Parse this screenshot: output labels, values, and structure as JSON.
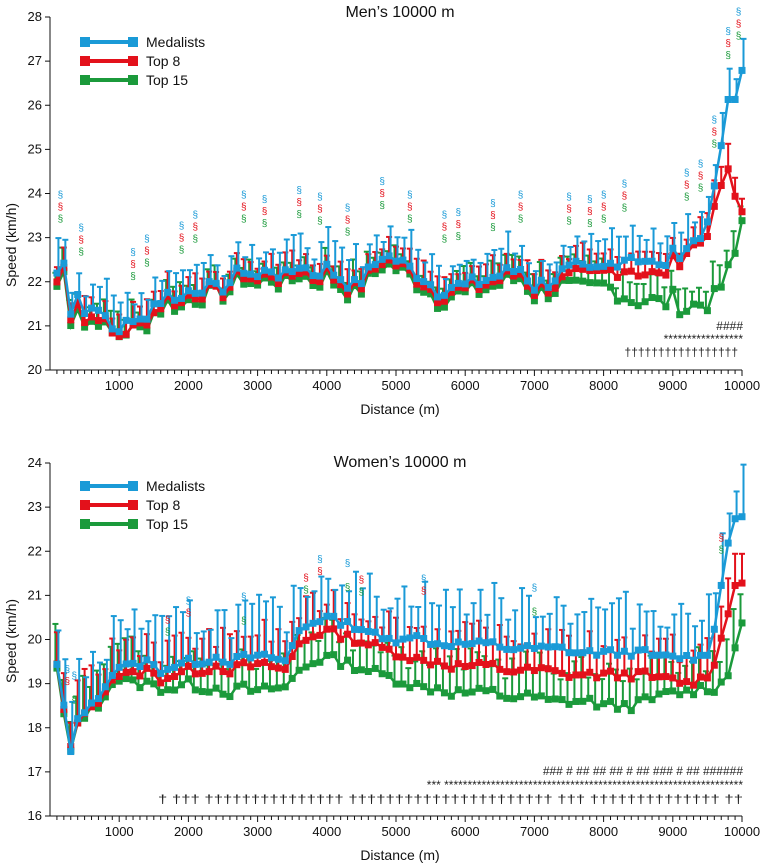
{
  "colors": {
    "medalists": "#1a9ad7",
    "top8": "#e3111b",
    "top15": "#1b9a3b"
  },
  "chart_data": [
    {
      "type": "line",
      "title": "Men’s 10000 m",
      "xlabel": "Distance (m)",
      "ylabel": "Speed (km/h)",
      "xlim": [
        0,
        10000
      ],
      "ylim": [
        20,
        28
      ],
      "x_ticks": [
        "1000",
        "2000",
        "3000",
        "4000",
        "5000",
        "6000",
        "7000",
        "8000",
        "9000",
        "10000"
      ],
      "y_ticks": [
        "20",
        "21",
        "22",
        "23",
        "24",
        "25",
        "26",
        "27",
        "28"
      ],
      "legend": [
        "Medalists",
        "Top 8",
        "Top 15"
      ],
      "legend_position": "top-left",
      "error_bars": "upper standard deviation shown as capped whiskers",
      "anchors": {
        "x": [
          100,
          200,
          300,
          400,
          500,
          600,
          700,
          800,
          900,
          1000,
          1100,
          1200,
          1300,
          1400,
          1500,
          1600,
          1700,
          1800,
          1900,
          2000,
          2200,
          2400,
          2600,
          2800,
          3000,
          3200,
          3400,
          3600,
          3800,
          4000,
          4200,
          4400,
          4600,
          4800,
          5000,
          5200,
          5400,
          5600,
          5800,
          6000,
          6200,
          6400,
          6600,
          6800,
          7000,
          7200,
          7400,
          7600,
          7800,
          8000,
          8200,
          8400,
          8600,
          8800,
          9000,
          9200,
          9400,
          9600,
          9700,
          9800,
          9900,
          10000
        ],
        "medalists": [
          22.2,
          22.4,
          21.4,
          21.8,
          21.3,
          21.4,
          21.5,
          21.1,
          20.9,
          20.9,
          21.2,
          21.0,
          21.1,
          21.3,
          21.5,
          21.6,
          21.7,
          21.7,
          21.6,
          21.8,
          21.9,
          21.8,
          22.0,
          22.3,
          22.1,
          22.3,
          22.1,
          22.4,
          22.2,
          22.3,
          22.1,
          21.9,
          22.2,
          22.6,
          22.5,
          22.3,
          22.1,
          21.8,
          21.9,
          21.9,
          22.0,
          22.1,
          22.2,
          22.3,
          21.9,
          22.0,
          22.2,
          22.3,
          22.2,
          22.3,
          22.5,
          22.6,
          22.5,
          22.3,
          22.6,
          22.8,
          23.0,
          24.0,
          25.1,
          26.0,
          26.1,
          26.8
        ],
        "top8": [
          22.0,
          22.3,
          21.3,
          21.6,
          21.1,
          21.2,
          21.3,
          21.0,
          20.8,
          20.8,
          20.9,
          20.9,
          21.0,
          21.2,
          21.3,
          21.5,
          21.6,
          21.6,
          21.5,
          21.7,
          21.8,
          21.7,
          21.9,
          22.2,
          22.0,
          22.2,
          22.0,
          22.3,
          22.1,
          22.2,
          22.0,
          21.8,
          22.1,
          22.5,
          22.4,
          22.2,
          22.0,
          21.7,
          21.8,
          21.8,
          21.9,
          22.0,
          22.1,
          22.2,
          21.8,
          21.9,
          22.0,
          22.1,
          22.1,
          22.2,
          22.3,
          22.3,
          22.2,
          22.1,
          22.4,
          22.7,
          22.9,
          23.5,
          24.2,
          24.4,
          23.9,
          23.6
        ],
        "top15": [
          21.9,
          22.2,
          21.2,
          21.5,
          21.0,
          21.1,
          21.2,
          20.9,
          20.8,
          20.8,
          20.9,
          20.9,
          20.9,
          21.1,
          21.3,
          21.4,
          21.5,
          21.5,
          21.4,
          21.6,
          21.7,
          21.7,
          21.8,
          22.1,
          21.9,
          22.1,
          21.9,
          22.2,
          22.0,
          22.1,
          21.9,
          21.7,
          22.0,
          22.4,
          22.3,
          22.1,
          21.9,
          21.6,
          21.7,
          21.7,
          21.8,
          21.9,
          22.0,
          22.1,
          21.7,
          21.8,
          21.9,
          21.8,
          21.8,
          21.9,
          21.8,
          21.6,
          21.6,
          21.5,
          21.6,
          21.4,
          21.5,
          21.6,
          21.9,
          22.2,
          22.6,
          23.4
        ]
      },
      "annotations": {
        "hash_row": "####",
        "star_row": "*****************",
        "dagger_row": "†††††††††††††††††"
      }
    },
    {
      "type": "line",
      "title": "Women’s 10000 m",
      "xlabel": "Distance (m)",
      "ylabel": "Speed (km/h)",
      "xlim": [
        0,
        10000
      ],
      "ylim": [
        16,
        24
      ],
      "x_ticks": [
        "1000",
        "2000",
        "3000",
        "4000",
        "5000",
        "6000",
        "7000",
        "8000",
        "9000",
        "10000"
      ],
      "y_ticks": [
        "16",
        "17",
        "18",
        "19",
        "20",
        "21",
        "22",
        "23",
        "24"
      ],
      "legend": [
        "Medalists",
        "Top 8",
        "Top 15"
      ],
      "legend_position": "top-left",
      "error_bars": "upper standard deviation shown as capped whiskers",
      "anchors": {
        "x": [
          100,
          200,
          300,
          400,
          500,
          600,
          700,
          800,
          900,
          1000,
          1200,
          1400,
          1600,
          1800,
          2000,
          2200,
          2400,
          2600,
          2800,
          3000,
          3200,
          3400,
          3600,
          3700,
          3800,
          4000,
          4200,
          4400,
          4600,
          4800,
          5000,
          5200,
          5400,
          5600,
          5800,
          6000,
          6200,
          6400,
          6600,
          6800,
          7000,
          7200,
          7400,
          7600,
          7800,
          8000,
          8200,
          8400,
          8600,
          8800,
          9000,
          9200,
          9400,
          9500,
          9600,
          9700,
          9800,
          9900,
          10000
        ],
        "medalists": [
          19.4,
          18.5,
          17.4,
          18.2,
          18.4,
          18.5,
          18.7,
          19.0,
          19.2,
          19.4,
          19.4,
          19.5,
          19.3,
          19.4,
          19.5,
          19.5,
          19.6,
          19.5,
          19.6,
          19.6,
          19.6,
          19.5,
          20.2,
          20.3,
          20.4,
          20.5,
          20.4,
          20.3,
          20.2,
          20.0,
          20.0,
          20.1,
          20.0,
          19.9,
          19.9,
          19.9,
          19.9,
          19.9,
          19.8,
          19.8,
          19.8,
          19.8,
          19.8,
          19.7,
          19.7,
          19.7,
          19.7,
          19.7,
          19.7,
          19.6,
          19.6,
          19.6,
          19.6,
          19.7,
          20.3,
          21.2,
          22.2,
          22.8,
          22.8
        ],
        "top8": [
          19.4,
          18.4,
          17.5,
          18.1,
          18.4,
          18.4,
          18.6,
          18.9,
          19.1,
          19.2,
          19.2,
          19.3,
          19.1,
          19.2,
          19.3,
          19.3,
          19.4,
          19.3,
          19.4,
          19.4,
          19.4,
          19.3,
          19.9,
          20.0,
          20.1,
          20.2,
          20.1,
          20.0,
          19.9,
          19.8,
          19.7,
          19.6,
          19.5,
          19.5,
          19.4,
          19.4,
          19.4,
          19.4,
          19.3,
          19.3,
          19.3,
          19.3,
          19.2,
          19.2,
          19.2,
          19.2,
          19.2,
          19.2,
          19.2,
          19.1,
          19.1,
          19.0,
          19.1,
          19.2,
          19.5,
          20.0,
          20.6,
          21.3,
          21.3
        ],
        "top15": [
          19.3,
          18.3,
          17.4,
          18.1,
          18.3,
          18.4,
          18.5,
          18.8,
          19.0,
          19.1,
          19.0,
          19.0,
          18.9,
          18.9,
          19.0,
          18.9,
          18.9,
          18.8,
          18.9,
          18.8,
          18.9,
          18.9,
          19.3,
          19.4,
          19.5,
          19.6,
          19.5,
          19.4,
          19.3,
          19.2,
          19.1,
          19.0,
          18.9,
          18.9,
          18.8,
          18.8,
          18.8,
          18.8,
          18.7,
          18.7,
          18.7,
          18.6,
          18.6,
          18.6,
          18.6,
          18.5,
          18.5,
          18.5,
          18.6,
          18.7,
          18.8,
          18.8,
          18.9,
          18.9,
          18.9,
          19.0,
          19.2,
          19.9,
          20.4
        ]
      },
      "annotations": {
        "hash_row": "### # ## ## ## # ## ### # ## ######",
        "star_row": "*** ****************************************************************",
        "dagger_row": "† ††† ††††††††††††††† †††††††††††††††††††††† ††† †††††††††††††† ††"
      }
    }
  ]
}
